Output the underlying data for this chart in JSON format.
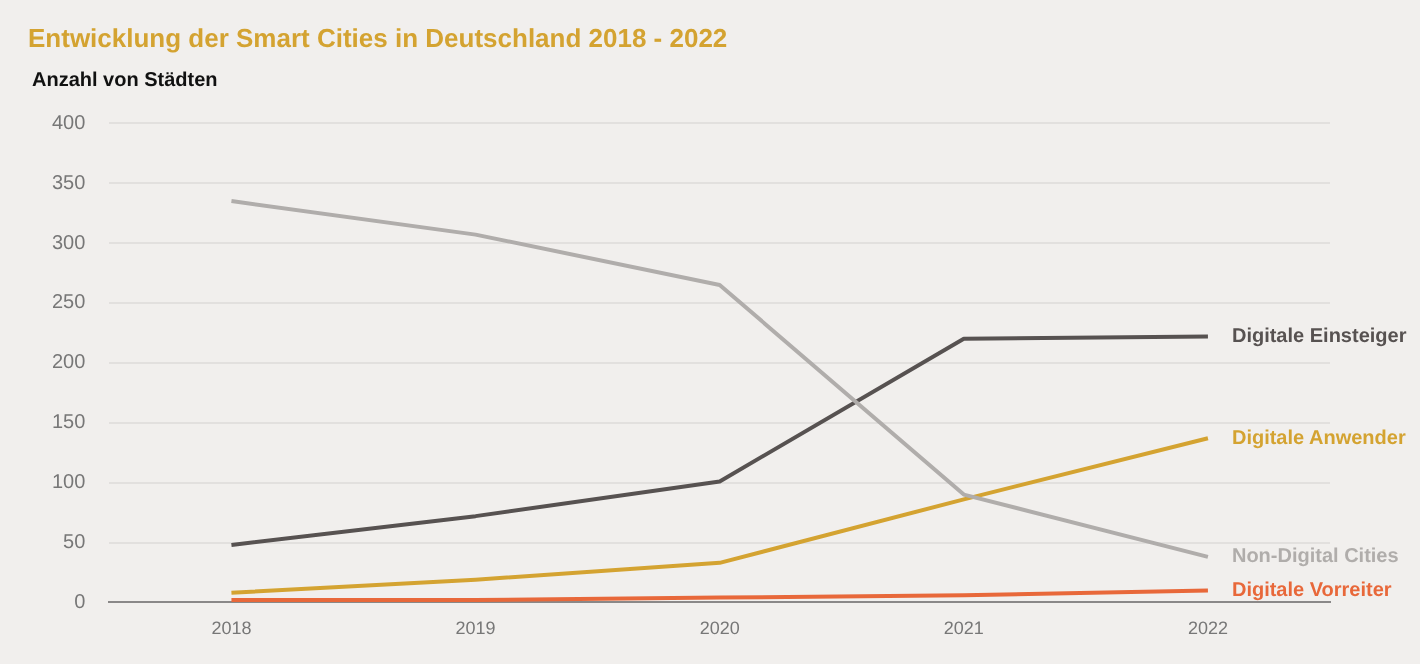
{
  "chart_data": {
    "type": "line",
    "title": "Entwicklung der Smart Cities in Deutschland 2018 - 2022",
    "ylabel": "Anzahl von Städten",
    "categories": [
      "2018",
      "2019",
      "2020",
      "2021",
      "2022"
    ],
    "series": [
      {
        "name": "Non-Digital Cities",
        "color": "#b0adab",
        "values": [
          335,
          307,
          265,
          90,
          38
        ]
      },
      {
        "name": "Digitale Einsteiger",
        "color": "#575251",
        "values": [
          48,
          72,
          101,
          220,
          222
        ]
      },
      {
        "name": "Digitale Anwender",
        "color": "#d4a331",
        "values": [
          8,
          19,
          33,
          86,
          137
        ]
      },
      {
        "name": "Digitale Vorreiter",
        "color": "#e8683a",
        "values": [
          2,
          2,
          4,
          6,
          10
        ]
      }
    ],
    "ylim": [
      0,
      400
    ],
    "yticks": [
      0,
      50,
      100,
      150,
      200,
      250,
      300,
      350,
      400
    ],
    "grid": "y",
    "marker": "none",
    "line_style": "solid"
  }
}
